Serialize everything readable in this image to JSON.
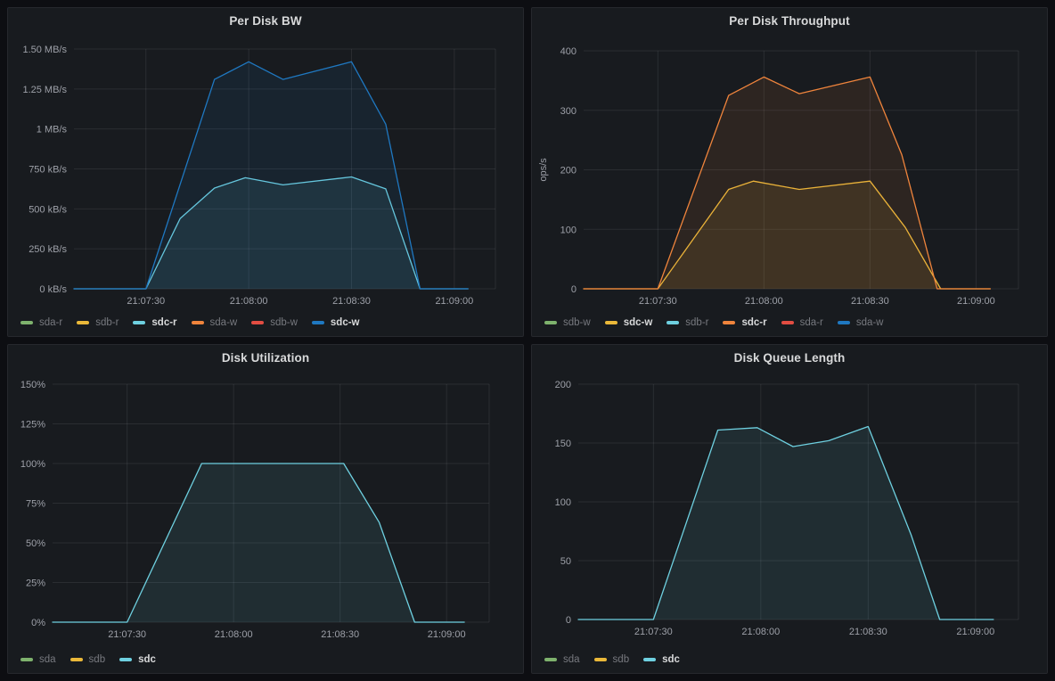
{
  "page": {
    "background": "#0d0e12",
    "panel_background": "#181b1f",
    "panel_border": "#26282d",
    "grid_color": "rgba(204,204,220,0.10)",
    "title_color": "#d8d9da",
    "axis_text_color": "#9da0a8",
    "legend_dim_color": "#77797f",
    "legend_highlight_color": "#d8d9da",
    "palette": {
      "green": "#7EB26D",
      "yellow": "#EAB839",
      "cyan": "#6ED0E0",
      "orange": "#EF843C",
      "red": "#E24D42",
      "blue": "#1F78C1"
    }
  },
  "chart_data": [
    {
      "type": "line",
      "title": "Per Disk BW",
      "x_range": [
        429,
        552
      ],
      "x_ticks": [
        {
          "t": 450,
          "label": "21:07:30"
        },
        {
          "t": 480,
          "label": "21:08:00"
        },
        {
          "t": 510,
          "label": "21:08:30"
        },
        {
          "t": 540,
          "label": "21:09:00"
        }
      ],
      "y_range": [
        0,
        1500
      ],
      "y_axis_label": "",
      "y_ticks": [
        {
          "v": 0,
          "label": "0 kB/s"
        },
        {
          "v": 250,
          "label": "250 kB/s"
        },
        {
          "v": 500,
          "label": "500 kB/s"
        },
        {
          "v": 750,
          "label": "750 kB/s"
        },
        {
          "v": 1000,
          "label": "1 MB/s"
        },
        {
          "v": 1250,
          "label": "1.25 MB/s"
        },
        {
          "v": 1500,
          "label": "1.50 MB/s"
        }
      ],
      "legend": [
        {
          "name": "sda-r",
          "color": "#7EB26D",
          "highlighted": false
        },
        {
          "name": "sdb-r",
          "color": "#EAB839",
          "highlighted": false
        },
        {
          "name": "sdc-r",
          "color": "#6ED0E0",
          "highlighted": true
        },
        {
          "name": "sda-w",
          "color": "#EF843C",
          "highlighted": false
        },
        {
          "name": "sdb-w",
          "color": "#E24D42",
          "highlighted": false
        },
        {
          "name": "sdc-w",
          "color": "#1F78C1",
          "highlighted": true
        }
      ],
      "series": [
        {
          "name": "sdc-r",
          "color": "#6ED0E0",
          "points": [
            [
              429,
              0
            ],
            [
              450,
              0
            ],
            [
              460,
              440
            ],
            [
              470,
              630
            ],
            [
              479,
              695
            ],
            [
              490,
              650
            ],
            [
              510,
              700
            ],
            [
              520,
              625
            ],
            [
              530,
              0
            ],
            [
              544,
              0
            ]
          ]
        },
        {
          "name": "sdc-w",
          "color": "#1F78C1",
          "points": [
            [
              429,
              0
            ],
            [
              450,
              0
            ],
            [
              470,
              1310
            ],
            [
              480,
              1420
            ],
            [
              490,
              1310
            ],
            [
              510,
              1420
            ],
            [
              520,
              1030
            ],
            [
              530,
              0
            ],
            [
              544,
              0
            ]
          ]
        }
      ]
    },
    {
      "type": "line",
      "title": "Per Disk Throughput",
      "x_range": [
        429,
        552
      ],
      "x_ticks": [
        {
          "t": 450,
          "label": "21:07:30"
        },
        {
          "t": 480,
          "label": "21:08:00"
        },
        {
          "t": 510,
          "label": "21:08:30"
        },
        {
          "t": 540,
          "label": "21:09:00"
        }
      ],
      "y_range": [
        0,
        400
      ],
      "y_axis_label": "ops/s",
      "y_ticks": [
        {
          "v": 0,
          "label": "0"
        },
        {
          "v": 100,
          "label": "100"
        },
        {
          "v": 200,
          "label": "200"
        },
        {
          "v": 300,
          "label": "300"
        },
        {
          "v": 400,
          "label": "400"
        }
      ],
      "legend": [
        {
          "name": "sdb-w",
          "color": "#7EB26D",
          "highlighted": false
        },
        {
          "name": "sdc-w",
          "color": "#EAB839",
          "highlighted": true
        },
        {
          "name": "sdb-r",
          "color": "#6ED0E0",
          "highlighted": false
        },
        {
          "name": "sdc-r",
          "color": "#EF843C",
          "highlighted": true
        },
        {
          "name": "sda-r",
          "color": "#E24D42",
          "highlighted": false
        },
        {
          "name": "sda-w",
          "color": "#1F78C1",
          "highlighted": false
        }
      ],
      "series": [
        {
          "name": "sdc-w",
          "color": "#EAB839",
          "points": [
            [
              429,
              0
            ],
            [
              450,
              0
            ],
            [
              470,
              167
            ],
            [
              477,
              181
            ],
            [
              490,
              167
            ],
            [
              510,
              181
            ],
            [
              520,
              103
            ],
            [
              530,
              0
            ],
            [
              544,
              0
            ]
          ]
        },
        {
          "name": "sdc-r",
          "color": "#EF843C",
          "points": [
            [
              429,
              0
            ],
            [
              450,
              0
            ],
            [
              470,
              325
            ],
            [
              480,
              356
            ],
            [
              490,
              328
            ],
            [
              510,
              356
            ],
            [
              519,
              225
            ],
            [
              529,
              0
            ],
            [
              544,
              0
            ]
          ]
        }
      ]
    },
    {
      "type": "line",
      "title": "Disk Utilization",
      "x_range": [
        429,
        552
      ],
      "x_ticks": [
        {
          "t": 450,
          "label": "21:07:30"
        },
        {
          "t": 480,
          "label": "21:08:00"
        },
        {
          "t": 510,
          "label": "21:08:30"
        },
        {
          "t": 540,
          "label": "21:09:00"
        }
      ],
      "y_range": [
        0,
        150
      ],
      "y_axis_label": "",
      "y_ticks": [
        {
          "v": 0,
          "label": "0%"
        },
        {
          "v": 25,
          "label": "25%"
        },
        {
          "v": 50,
          "label": "50%"
        },
        {
          "v": 75,
          "label": "75%"
        },
        {
          "v": 100,
          "label": "100%"
        },
        {
          "v": 125,
          "label": "125%"
        },
        {
          "v": 150,
          "label": "150%"
        }
      ],
      "legend": [
        {
          "name": "sda",
          "color": "#7EB26D",
          "highlighted": false
        },
        {
          "name": "sdb",
          "color": "#EAB839",
          "highlighted": false
        },
        {
          "name": "sdc",
          "color": "#6ED0E0",
          "highlighted": true
        }
      ],
      "series": [
        {
          "name": "sdc",
          "color": "#6ED0E0",
          "points": [
            [
              429,
              0
            ],
            [
              450,
              0
            ],
            [
              471,
              100
            ],
            [
              511,
              100
            ],
            [
              521,
              63
            ],
            [
              531,
              0
            ],
            [
              545,
              0
            ]
          ]
        }
      ]
    },
    {
      "type": "line",
      "title": "Disk Queue Length",
      "x_range": [
        429,
        552
      ],
      "x_ticks": [
        {
          "t": 450,
          "label": "21:07:30"
        },
        {
          "t": 480,
          "label": "21:08:00"
        },
        {
          "t": 510,
          "label": "21:08:30"
        },
        {
          "t": 540,
          "label": "21:09:00"
        }
      ],
      "y_range": [
        0,
        200
      ],
      "y_axis_label": "",
      "y_ticks": [
        {
          "v": 0,
          "label": "0"
        },
        {
          "v": 50,
          "label": "50"
        },
        {
          "v": 100,
          "label": "100"
        },
        {
          "v": 150,
          "label": "150"
        },
        {
          "v": 200,
          "label": "200"
        }
      ],
      "legend": [
        {
          "name": "sda",
          "color": "#7EB26D",
          "highlighted": false
        },
        {
          "name": "sdb",
          "color": "#EAB839",
          "highlighted": false
        },
        {
          "name": "sdc",
          "color": "#6ED0E0",
          "highlighted": true
        }
      ],
      "series": [
        {
          "name": "sdc",
          "color": "#6ED0E0",
          "points": [
            [
              429,
              0
            ],
            [
              450,
              0
            ],
            [
              468,
              161
            ],
            [
              479,
              163
            ],
            [
              489,
              147
            ],
            [
              499,
              152
            ],
            [
              510,
              164
            ],
            [
              522,
              72
            ],
            [
              530,
              0
            ],
            [
              545,
              0
            ]
          ]
        }
      ]
    }
  ]
}
